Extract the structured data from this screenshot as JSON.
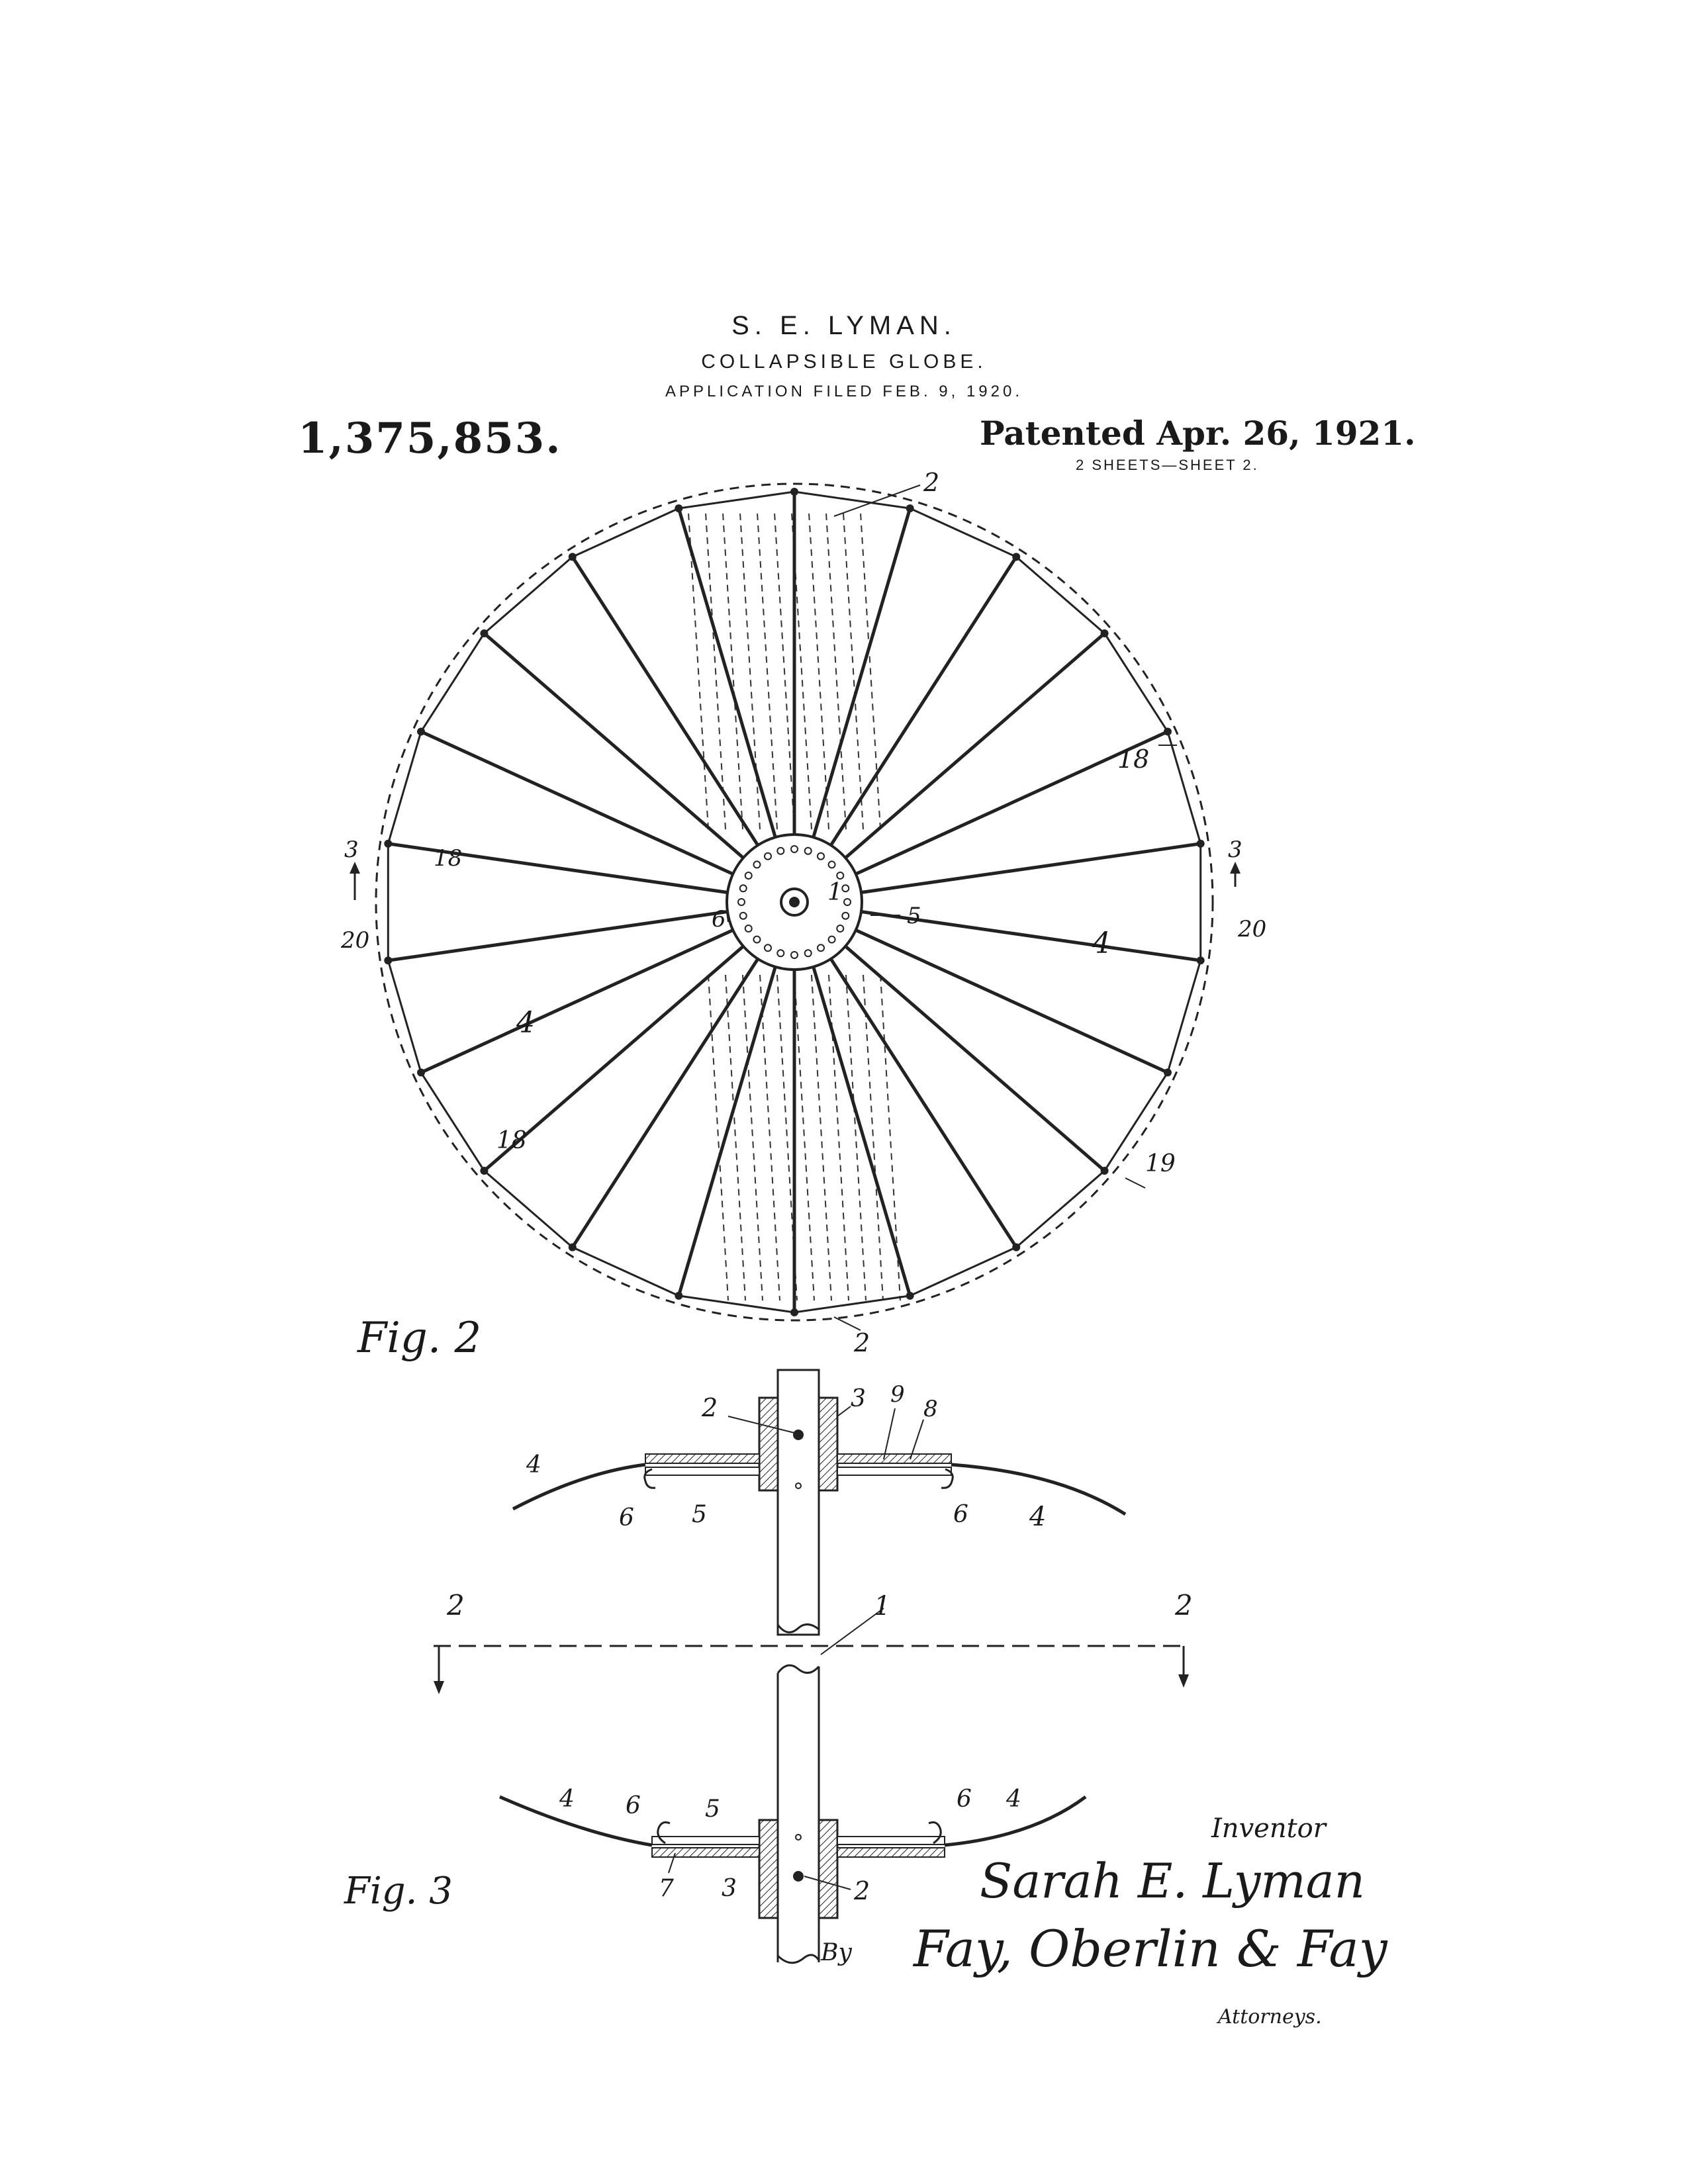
{
  "header": {
    "inventor": "S. E. LYMAN.",
    "title": "COLLAPSIBLE GLOBE.",
    "filed": "APPLICATION FILED FEB. 9, 1920.",
    "patent_number": "1,375,853.",
    "patent_date": "Patented Apr. 26, 1921.",
    "sheets": "2 SHEETS—SHEET 2."
  },
  "figure2": {
    "caption": "Fig. 2",
    "labels": {
      "top_2": "2",
      "bottom_2": "2",
      "hub_1": "1",
      "hub_5": "5",
      "hub_6": "6",
      "left_3": "3",
      "right_3": "3",
      "left_18": "18",
      "left_20": "20",
      "right_18": "18",
      "right_20": "20",
      "right_4": "4",
      "left_4": "4",
      "lower_left_18": "18",
      "lower_right_19": "19"
    }
  },
  "figure3": {
    "caption": "Fig. 3",
    "labels": {
      "top_2": "2",
      "top_3": "3",
      "top_9": "9",
      "top_8": "8",
      "top_left_4": "4",
      "top_right_4": "4",
      "top_left_6": "6",
      "top_5": "5",
      "top_right_6": "6",
      "section_left_2": "2",
      "section_right_2": "2",
      "tube_1": "1",
      "bot_left_4": "4",
      "bot_left_6": "6",
      "bot_5": "5",
      "bot_right_6": "6",
      "bot_right_4": "4",
      "bot_7": "7",
      "bot_3": "3",
      "bot_2": "2"
    }
  },
  "signatures": {
    "inventor_label": "Inventor",
    "inventor_signature": "Sarah E. Lyman",
    "by": "By",
    "attorneys_signature": "Fay, Oberlin & Fay",
    "attorneys_label": "Attorneys."
  }
}
